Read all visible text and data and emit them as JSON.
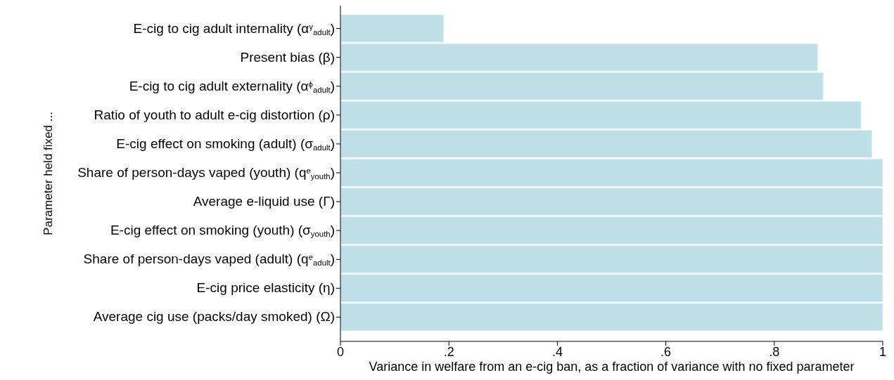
{
  "chart_data": {
    "type": "bar",
    "orientation": "horizontal",
    "categories": [
      "E-cig to cig adult internality (α$^{γ}$$_{adult}$)",
      "Present bias (β)",
      "E-cig to cig adult externality (α$^{ϕ}$$_{adult}$)",
      "Ratio of youth to adult e-cig distortion (ρ)",
      "E-cig effect on smoking (adult) (σ$_{adult}$)",
      "Share of person-days vaped (youth) (q$^{e}$$_{youth}$)",
      "Average e-liquid use (Γ)",
      "E-cig effect on smoking (youth) (σ$_{youth}$)",
      "Share of person-days vaped (adult) (q$^{e}$$_{adult}$)",
      "E-cig price elasticity (η)",
      "Average cig use (packs/day smoked) (Ω)"
    ],
    "values": [
      0.19,
      0.88,
      0.89,
      0.96,
      0.98,
      1,
      1,
      1,
      1,
      1,
      1
    ],
    "color": "#bfdfe8",
    "xlim": [
      0,
      1
    ],
    "xticks": [
      0,
      {
        "value": 0.2,
        "label": ".2"
      },
      {
        "value": 0.4,
        "label": ".4"
      },
      {
        "value": 0.6,
        "label": ".6"
      },
      {
        "value": 0.8,
        "label": ".8"
      },
      1
    ],
    "xlabel": "Variance in welfare from an e-cig ban, as a fraction of variance with no fixed parameter",
    "ylabel": "Parameter held fixed ...",
    "tick_labels": true
  }
}
